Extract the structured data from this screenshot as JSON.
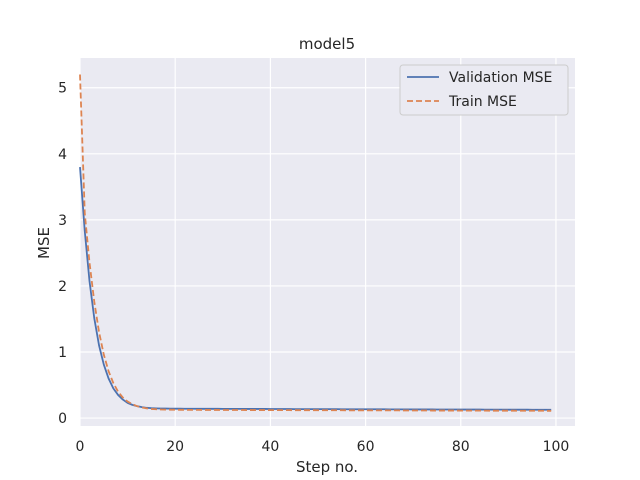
{
  "chart_data": {
    "type": "line",
    "title": "model5",
    "xlabel": "Step no.",
    "ylabel": "MSE",
    "xlim": [
      0,
      104
    ],
    "ylim": [
      -0.12,
      5.45
    ],
    "xticks": [
      0,
      20,
      40,
      60,
      80,
      100
    ],
    "yticks": [
      0,
      1,
      2,
      3,
      4,
      5
    ],
    "xtick_labels": [
      "0",
      "20",
      "40",
      "60",
      "80",
      "100"
    ],
    "ytick_labels": [
      "0",
      "1",
      "2",
      "3",
      "4",
      "5"
    ],
    "grid": true,
    "legend_position": "top-right",
    "x": [
      0,
      1,
      2,
      3,
      4,
      5,
      6,
      7,
      8,
      9,
      10,
      11,
      12,
      13,
      14,
      15,
      16,
      17,
      18,
      19,
      20,
      21,
      22,
      23,
      24,
      25,
      26,
      27,
      28,
      29,
      30,
      31,
      32,
      33,
      34,
      35,
      36,
      37,
      38,
      39,
      40,
      41,
      42,
      43,
      44,
      45,
      46,
      47,
      48,
      49,
      50,
      51,
      52,
      53,
      54,
      55,
      56,
      57,
      58,
      59,
      60,
      61,
      62,
      63,
      64,
      65,
      66,
      67,
      68,
      69,
      70,
      71,
      72,
      73,
      74,
      75,
      76,
      77,
      78,
      79,
      80,
      81,
      82,
      83,
      84,
      85,
      86,
      87,
      88,
      89,
      90,
      91,
      92,
      93,
      94,
      95,
      96,
      97,
      98,
      99
    ],
    "series": [
      {
        "name": "Validation MSE",
        "color": "#4c72b0",
        "dash": "solid",
        "values": [
          3.8,
          2.83,
          2.07,
          1.51,
          1.1,
          0.81,
          0.6,
          0.45,
          0.35,
          0.28,
          0.23,
          0.2,
          0.18,
          0.165,
          0.155,
          0.15,
          0.147,
          0.145,
          0.144,
          0.143,
          0.142,
          0.142,
          0.141,
          0.141,
          0.141,
          0.14,
          0.14,
          0.14,
          0.14,
          0.14,
          0.139,
          0.139,
          0.139,
          0.139,
          0.139,
          0.138,
          0.138,
          0.138,
          0.138,
          0.138,
          0.137,
          0.137,
          0.137,
          0.137,
          0.137,
          0.136,
          0.136,
          0.136,
          0.136,
          0.136,
          0.135,
          0.135,
          0.135,
          0.135,
          0.135,
          0.134,
          0.134,
          0.134,
          0.134,
          0.134,
          0.133,
          0.133,
          0.133,
          0.133,
          0.133,
          0.132,
          0.132,
          0.132,
          0.132,
          0.132,
          0.131,
          0.131,
          0.131,
          0.131,
          0.131,
          0.13,
          0.13,
          0.13,
          0.13,
          0.13,
          0.129,
          0.129,
          0.129,
          0.129,
          0.129,
          0.128,
          0.128,
          0.128,
          0.128,
          0.128,
          0.127,
          0.127,
          0.127,
          0.127,
          0.127,
          0.126,
          0.126,
          0.126,
          0.126,
          0.126
        ]
      },
      {
        "name": "Train MSE",
        "color": "#dd8452",
        "dash": "dashed",
        "values": [
          5.2,
          3.1,
          2.35,
          1.76,
          1.3,
          0.96,
          0.71,
          0.53,
          0.4,
          0.31,
          0.25,
          0.21,
          0.18,
          0.16,
          0.147,
          0.138,
          0.133,
          0.13,
          0.128,
          0.127,
          0.126,
          0.125,
          0.125,
          0.124,
          0.124,
          0.124,
          0.123,
          0.123,
          0.123,
          0.123,
          0.122,
          0.122,
          0.122,
          0.122,
          0.122,
          0.121,
          0.121,
          0.121,
          0.121,
          0.121,
          0.12,
          0.12,
          0.12,
          0.12,
          0.12,
          0.119,
          0.119,
          0.119,
          0.119,
          0.119,
          0.118,
          0.118,
          0.118,
          0.118,
          0.118,
          0.118,
          0.117,
          0.117,
          0.117,
          0.117,
          0.117,
          0.117,
          0.116,
          0.116,
          0.116,
          0.116,
          0.116,
          0.116,
          0.115,
          0.115,
          0.115,
          0.115,
          0.115,
          0.115,
          0.114,
          0.114,
          0.114,
          0.114,
          0.114,
          0.114,
          0.113,
          0.113,
          0.113,
          0.113,
          0.113,
          0.113,
          0.112,
          0.112,
          0.112,
          0.112,
          0.112,
          0.112,
          0.111,
          0.111,
          0.111,
          0.111,
          0.111,
          0.111,
          0.11,
          0.11
        ]
      }
    ]
  }
}
